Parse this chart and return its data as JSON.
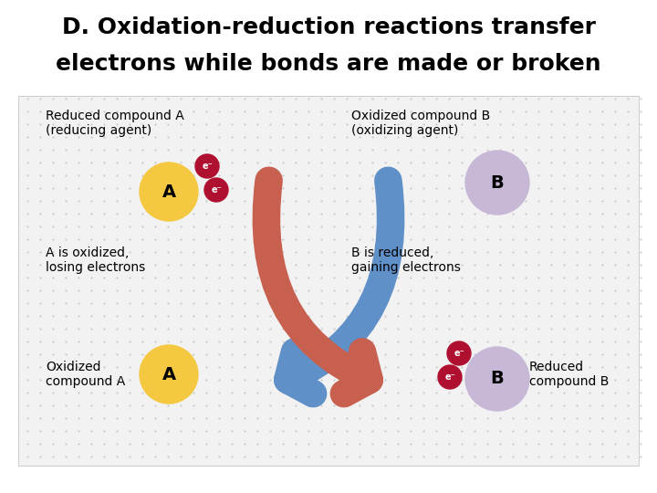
{
  "title_line1": "D. Oxidation-reduction reactions transfer",
  "title_line2": "electrons while bonds are made or broken",
  "title_fontsize": 18,
  "title_font": "sans-serif",
  "background_color": "#ffffff",
  "diagram_bg": "#f0f0f0",
  "labels": {
    "top_left": "Reduced compound A\n(reducing agent)",
    "top_right": "Oxidized compound B\n(oxidizing agent)",
    "mid_left": "A is oxidized,\nlosing electrons",
    "mid_right": "B is reduced,\ngaining electrons",
    "bot_left": "Oxidized\ncompound A",
    "bot_right": "Reduced\ncompound B"
  },
  "label_fontsize": 10,
  "atom_A_color": "#f5c842",
  "atom_B_color": "#c8b8d8",
  "electron_color": "#b01030",
  "arrow_red_color": "#c86050",
  "arrow_blue_color": "#6090c8",
  "diagram_border": "#bbbbbb",
  "dot_color": "#bbbbbb"
}
